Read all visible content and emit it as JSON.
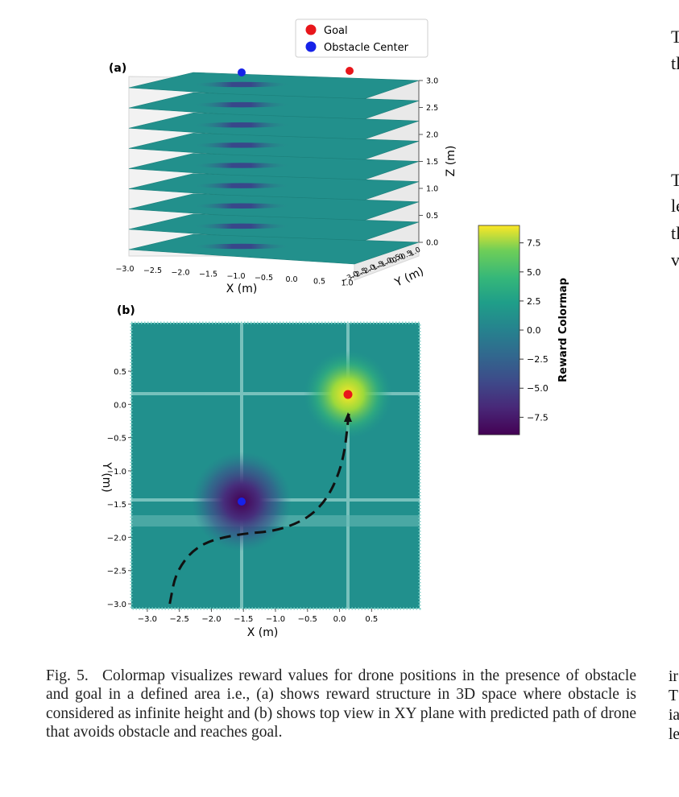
{
  "figure": {
    "panel_a_label": "(a)",
    "panel_b_label": "(b)",
    "legend": [
      {
        "label": "Goal",
        "color": "#e8161b"
      },
      {
        "label": "Obstacle Center",
        "color": "#1622e8"
      }
    ],
    "colorbar": {
      "label": "Reward Colormap",
      "ticks": [
        "7.5",
        "5.0",
        "2.5",
        "0.0",
        "−2.5",
        "−5.0",
        "−7.5"
      ]
    }
  },
  "caption": {
    "fig_number": "Fig. 5.",
    "text": "Colormap visualizes reward values for drone positions in the presence of obstacle and goal in a defined area i.e., (a) shows reward structure in 3D space where obstacle is considered as infinite height and (b) shows top view in XY plane with predicted path of drone that avoids obstacle and reaches goal."
  },
  "right_column": {
    "fragments": [
      "T",
      "tl",
      "T",
      "le",
      "tl",
      "v",
      "ir",
      "T",
      "ia",
      "le"
    ]
  },
  "chart_data": [
    {
      "type": "scatter",
      "title": "(a)",
      "xlabel": "X (m)",
      "ylabel": "Y (m)",
      "zlabel": "Z (m)",
      "x_ticks": [
        "−3.0",
        "−2.5",
        "−2.0",
        "−1.5",
        "−1.0",
        "−0.5",
        "0.0",
        "0.5",
        "1.0"
      ],
      "y_ticks": [
        "−3.0",
        "−2.5",
        "−2.0",
        "−1.5",
        "−1.0",
        "−0.5",
        "0.0",
        "0.5",
        "1.0"
      ],
      "z_ticks": [
        "0.0",
        "0.5",
        "1.0",
        "1.5",
        "2.0",
        "2.5",
        "3.0"
      ],
      "zlim": [
        0,
        3
      ],
      "layers_z": [
        0,
        0.375,
        0.75,
        1.125,
        1.5,
        1.875,
        2.25,
        2.625,
        3.0
      ],
      "markers": [
        {
          "name": "Obstacle Center",
          "color": "#1622e8"
        },
        {
          "name": "Goal",
          "color": "#e8161b"
        }
      ]
    },
    {
      "type": "heatmap",
      "title": "(b)",
      "xlabel": "X (m)",
      "ylabel": "Y (m)",
      "x_ticks": [
        "−3.0",
        "−2.5",
        "−2.0",
        "−1.5",
        "−1.0",
        "−0.5",
        "0.0",
        "0.5"
      ],
      "y_ticks": [
        "0.5",
        "0.0",
        "−0.5",
        "−1.0",
        "−1.5",
        "−2.0",
        "−2.5",
        "−3.0"
      ],
      "xlim": [
        -3.2,
        1.3
      ],
      "ylim": [
        -3.0,
        1.3
      ],
      "goal": {
        "x": 0.1,
        "y": 0.25
      },
      "obstacle": {
        "x": -1.55,
        "y": -1.45
      },
      "path": [
        [
          -2.65,
          -3.0
        ],
        [
          -2.55,
          -2.5
        ],
        [
          -2.2,
          -2.1
        ],
        [
          -1.6,
          -1.95
        ],
        [
          -0.9,
          -1.9
        ],
        [
          -0.3,
          -1.6
        ],
        [
          0.05,
          -0.95
        ],
        [
          0.15,
          -0.1
        ]
      ],
      "colorbar": {
        "label": "Reward Colormap",
        "min": -9.0,
        "max": 9.0,
        "ticks": [
          7.5,
          5.0,
          2.5,
          0.0,
          -2.5,
          -5.0,
          -7.5
        ]
      }
    }
  ]
}
